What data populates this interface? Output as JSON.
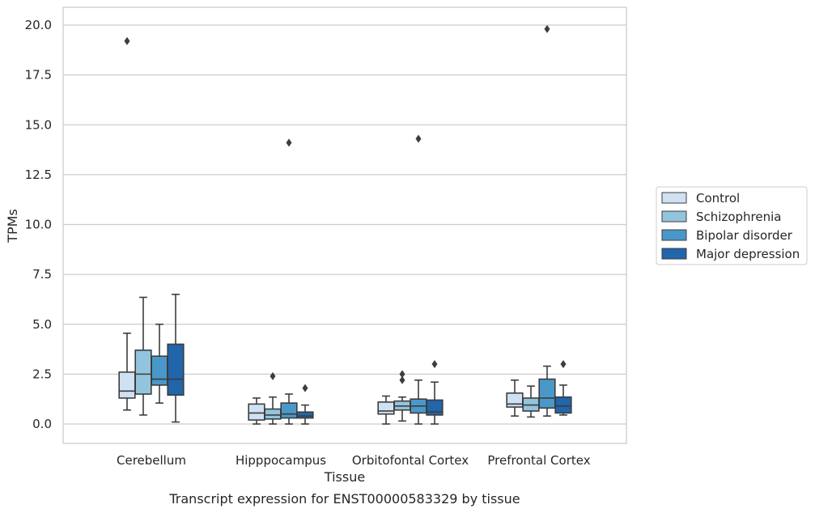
{
  "chart_data": {
    "type": "box",
    "title": "",
    "caption": "Transcript expression for ENST00000583329 by tissue",
    "xlabel": "Tissue",
    "ylabel": "TPMs",
    "ylim": [
      -1.0,
      20.8
    ],
    "yticks": [
      "0.0",
      "2.5",
      "5.0",
      "7.5",
      "10.0",
      "12.5",
      "15.0",
      "17.5",
      "20.0"
    ],
    "categories": [
      "Cerebellum",
      "Hipppocampus",
      "Orbitofontal Cortex",
      "Prefrontal Cortex"
    ],
    "grid": true,
    "legend_position": "center-right",
    "series": [
      {
        "name": "Control",
        "color": "#cfe1f2",
        "boxes": [
          {
            "min": 0.7,
            "q1": 1.3,
            "median": 1.65,
            "q3": 2.6,
            "max": 4.55,
            "outliers": [
              19.2
            ]
          },
          {
            "min": 0.0,
            "q1": 0.2,
            "median": 0.55,
            "q3": 1.0,
            "max": 1.3,
            "outliers": []
          },
          {
            "min": 0.0,
            "q1": 0.5,
            "median": 0.65,
            "q3": 1.1,
            "max": 1.4,
            "outliers": []
          },
          {
            "min": 0.4,
            "q1": 0.85,
            "median": 1.0,
            "q3": 1.55,
            "max": 2.2,
            "outliers": []
          }
        ]
      },
      {
        "name": "Schizophrenia",
        "color": "#93c4de",
        "boxes": [
          {
            "min": 0.45,
            "q1": 1.5,
            "median": 2.5,
            "q3": 3.7,
            "max": 6.35,
            "outliers": []
          },
          {
            "min": 0.0,
            "q1": 0.25,
            "median": 0.45,
            "q3": 0.75,
            "max": 1.35,
            "outliers": [
              2.4
            ]
          },
          {
            "min": 0.15,
            "q1": 0.7,
            "median": 0.9,
            "q3": 1.15,
            "max": 1.35,
            "outliers": [
              2.2,
              2.5
            ]
          },
          {
            "min": 0.35,
            "q1": 0.65,
            "median": 0.95,
            "q3": 1.3,
            "max": 1.9,
            "outliers": []
          }
        ]
      },
      {
        "name": "Bipolar disorder",
        "color": "#4a98c9",
        "boxes": [
          {
            "min": 1.05,
            "q1": 1.95,
            "median": 2.25,
            "q3": 3.4,
            "max": 5.0,
            "outliers": []
          },
          {
            "min": 0.0,
            "q1": 0.3,
            "median": 0.5,
            "q3": 1.05,
            "max": 1.5,
            "outliers": [
              14.1
            ]
          },
          {
            "min": 0.0,
            "q1": 0.55,
            "median": 0.9,
            "q3": 1.25,
            "max": 2.2,
            "outliers": [
              14.3
            ]
          },
          {
            "min": 0.4,
            "q1": 0.8,
            "median": 1.3,
            "q3": 2.25,
            "max": 2.9,
            "outliers": [
              19.8
            ]
          }
        ]
      },
      {
        "name": "Major depression",
        "color": "#2165ab",
        "boxes": [
          {
            "min": 0.1,
            "q1": 1.45,
            "median": 2.25,
            "q3": 4.0,
            "max": 6.5,
            "outliers": []
          },
          {
            "min": 0.0,
            "q1": 0.3,
            "median": 0.4,
            "q3": 0.6,
            "max": 0.95,
            "outliers": [
              1.8
            ]
          },
          {
            "min": 0.0,
            "q1": 0.45,
            "median": 0.6,
            "q3": 1.2,
            "max": 2.1,
            "outliers": [
              3.0
            ]
          },
          {
            "min": 0.45,
            "q1": 0.55,
            "median": 0.9,
            "q3": 1.35,
            "max": 1.95,
            "outliers": [
              3.0
            ]
          }
        ]
      }
    ]
  }
}
